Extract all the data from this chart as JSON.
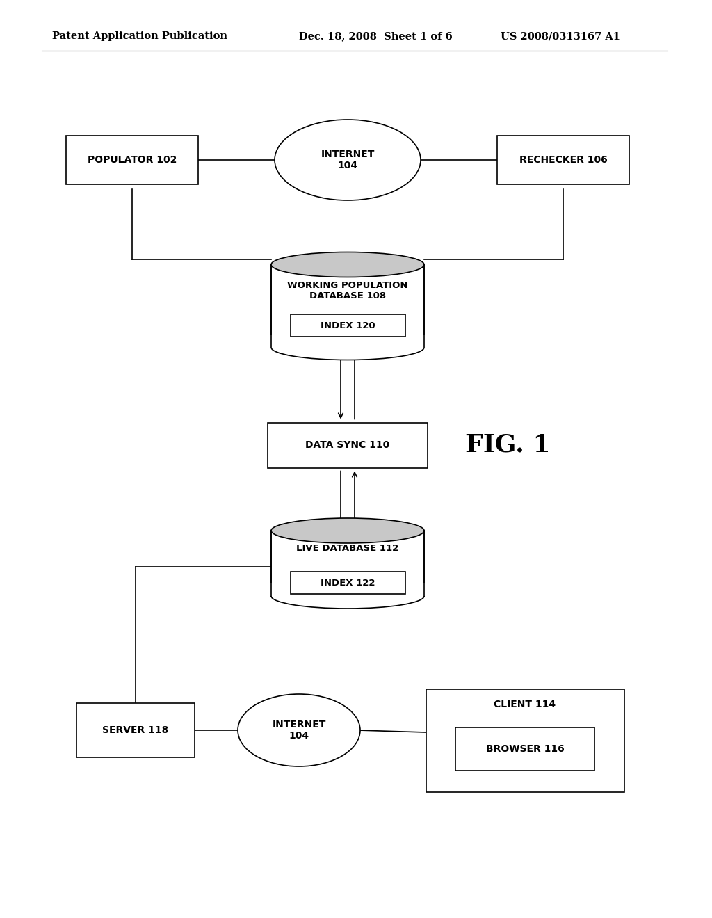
{
  "bg_color": "#ffffff",
  "header_left": "Patent Application Publication",
  "header_center": "Dec. 18, 2008  Sheet 1 of 6",
  "header_right": "US 2008/0313167 A1",
  "fig_label": "FIG. 1",
  "lw": 1.2
}
